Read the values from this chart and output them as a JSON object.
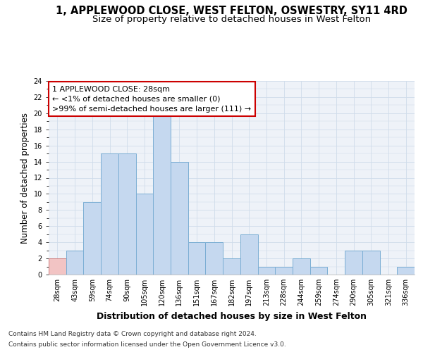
{
  "title_line1": "1, APPLEWOOD CLOSE, WEST FELTON, OSWESTRY, SY11 4RD",
  "title_line2": "Size of property relative to detached houses in West Felton",
  "xlabel": "Distribution of detached houses by size in West Felton",
  "ylabel": "Number of detached properties",
  "categories": [
    "28sqm",
    "43sqm",
    "59sqm",
    "74sqm",
    "90sqm",
    "105sqm",
    "120sqm",
    "136sqm",
    "151sqm",
    "167sqm",
    "182sqm",
    "197sqm",
    "213sqm",
    "228sqm",
    "244sqm",
    "259sqm",
    "274sqm",
    "290sqm",
    "305sqm",
    "321sqm",
    "336sqm"
  ],
  "values": [
    2,
    3,
    9,
    15,
    15,
    10,
    20,
    14,
    4,
    4,
    2,
    5,
    1,
    1,
    2,
    1,
    0,
    3,
    3,
    0,
    1
  ],
  "bar_color": "#c5d8ef",
  "bar_edge_color": "#7baed4",
  "highlight_bar_index": 0,
  "highlight_color": "#f2c4c4",
  "highlight_edge_color": "#d08080",
  "annotation_line1": "1 APPLEWOOD CLOSE: 28sqm",
  "annotation_line2": "← <1% of detached houses are smaller (0)",
  "annotation_line3": ">99% of semi-detached houses are larger (111) →",
  "annotation_box_color": "#ffffff",
  "annotation_box_edge_color": "#cc0000",
  "ylim": [
    0,
    24
  ],
  "yticks": [
    0,
    2,
    4,
    6,
    8,
    10,
    12,
    14,
    16,
    18,
    20,
    22,
    24
  ],
  "grid_color": "#d0dcea",
  "background_color": "#eef2f8",
  "footer_line1": "Contains HM Land Registry data © Crown copyright and database right 2024.",
  "footer_line2": "Contains public sector information licensed under the Open Government Licence v3.0.",
  "title_fontsize": 10.5,
  "subtitle_fontsize": 9.5,
  "xlabel_fontsize": 9,
  "ylabel_fontsize": 8.5,
  "tick_fontsize": 7,
  "annotation_fontsize": 8,
  "footer_fontsize": 6.5
}
